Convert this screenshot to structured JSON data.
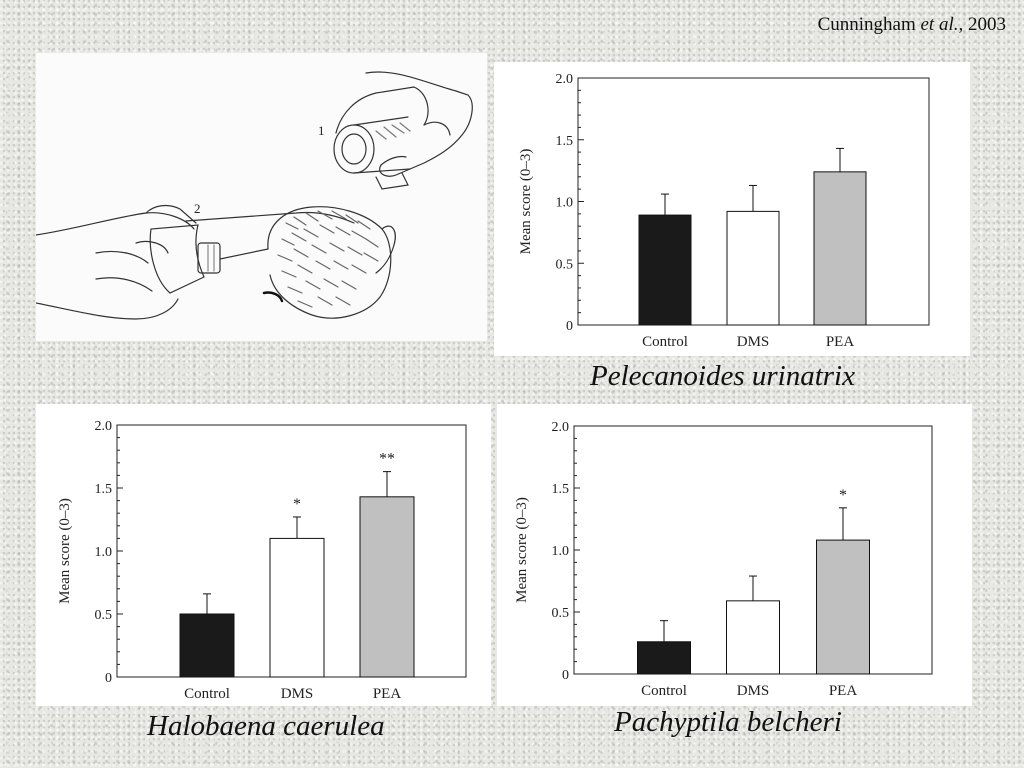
{
  "citation": {
    "author": "Cunningham",
    "etal": "et al.",
    "year": ", 2003"
  },
  "illustration": {
    "label_1": "1",
    "label_2": "2"
  },
  "chart_data": [
    {
      "type": "bar",
      "caption": "Pelecanoides urinatrix",
      "ylabel": "Mean score (0–3)",
      "categories": [
        "Control",
        "DMS",
        "PEA"
      ],
      "values": [
        0.89,
        0.92,
        1.24
      ],
      "errors": [
        0.17,
        0.21,
        0.19
      ],
      "significance": [
        "",
        "",
        ""
      ],
      "bar_colors": [
        "#1a1a1a",
        "#ffffff",
        "#c0c0c0"
      ],
      "ylim": [
        0,
        2.0
      ],
      "yticks": [
        "0",
        "0.5",
        "1.0",
        "1.5",
        "2.0"
      ]
    },
    {
      "type": "bar",
      "caption": "Halobaena caerulea",
      "ylabel": "Mean score (0–3)",
      "categories": [
        "Control",
        "DMS",
        "PEA"
      ],
      "values": [
        0.5,
        1.1,
        1.43
      ],
      "errors": [
        0.16,
        0.17,
        0.2
      ],
      "significance": [
        "",
        "*",
        "**"
      ],
      "bar_colors": [
        "#1a1a1a",
        "#ffffff",
        "#c0c0c0"
      ],
      "ylim": [
        0,
        2.0
      ],
      "yticks": [
        "0",
        "0.5",
        "1.0",
        "1.5",
        "2.0"
      ]
    },
    {
      "type": "bar",
      "caption": "Pachyptila belcheri",
      "ylabel": "Mean score (0–3)",
      "categories": [
        "Control",
        "DMS",
        "PEA"
      ],
      "values": [
        0.26,
        0.59,
        1.08
      ],
      "errors": [
        0.17,
        0.2,
        0.26
      ],
      "significance": [
        "",
        "",
        "*"
      ],
      "bar_colors": [
        "#1a1a1a",
        "#ffffff",
        "#c0c0c0"
      ],
      "ylim": [
        0,
        2.0
      ],
      "yticks": [
        "0",
        "0.5",
        "1.0",
        "1.5",
        "2.0"
      ]
    }
  ]
}
